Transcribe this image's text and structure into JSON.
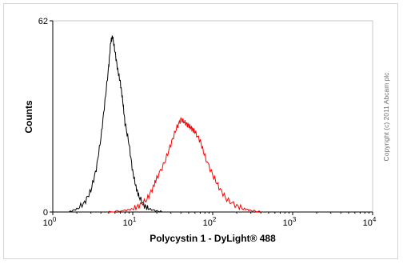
{
  "chart_data": {
    "type": "line",
    "title": "",
    "xlabel": "Polycystin 1 - DyLight® 488",
    "ylabel": "Counts",
    "x_scale": "log",
    "xlim": [
      1,
      10000
    ],
    "ylim": [
      0,
      62
    ],
    "x_ticks": [
      {
        "value": 1,
        "base": "10",
        "exp": "0"
      },
      {
        "value": 10,
        "base": "10",
        "exp": "1"
      },
      {
        "value": 100,
        "base": "10",
        "exp": "2"
      },
      {
        "value": 1000,
        "base": "10",
        "exp": "3"
      },
      {
        "value": 10000,
        "base": "10",
        "exp": "4"
      }
    ],
    "y_ticks": [
      {
        "value": 0,
        "label": "0"
      },
      {
        "value": 62,
        "label": "62"
      }
    ],
    "grid": false,
    "legend": "none",
    "annotation": "Copyright (c) 2011 Abcam plc",
    "series": [
      {
        "color": "#000000",
        "x": [
          1.6,
          2.0,
          2.5,
          3.0,
          3.5,
          4.0,
          4.5,
          5.0,
          5.3,
          5.6,
          6.0,
          6.5,
          7.0,
          7.5,
          8.0,
          9.0,
          10.0,
          11.0,
          12.0,
          14.0,
          16.0,
          20.0,
          25.0
        ],
        "y": [
          0,
          1,
          3,
          7,
          14,
          24,
          36,
          47,
          55,
          57,
          52,
          46,
          42,
          36,
          29,
          22,
          13,
          8,
          5,
          2,
          1,
          0.3,
          0
        ]
      },
      {
        "color": "#ff0000",
        "x": [
          5,
          8,
          10,
          12,
          15,
          18,
          20,
          25,
          30,
          35,
          40,
          45,
          50,
          55,
          60,
          70,
          80,
          100,
          120,
          150,
          200,
          250,
          300,
          400
        ],
        "y": [
          0,
          0.5,
          1,
          2,
          4,
          8,
          11,
          16,
          22,
          27,
          30,
          29,
          28,
          27,
          26,
          23,
          18,
          12,
          8,
          4,
          2,
          1,
          0.5,
          0
        ]
      }
    ]
  }
}
